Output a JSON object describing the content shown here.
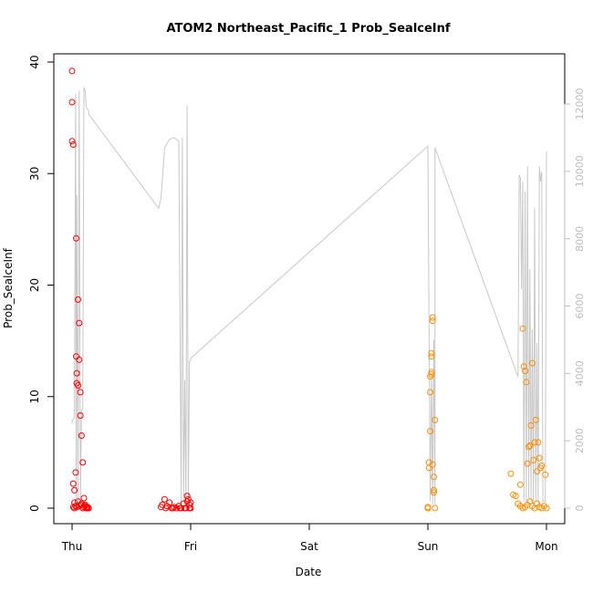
{
  "chart_data": {
    "type": "scatter",
    "title": "ATOM2 Northeast_Pacific_1 Prob_SealceInf",
    "xlabel": "Date",
    "ylabel": "Prob_SealceInf",
    "x_ticks": [
      "Thu",
      "Fri",
      "Sat",
      "Sun",
      "Mon"
    ],
    "x_range_days": [
      0,
      4
    ],
    "ylim": [
      0,
      40
    ],
    "y_ticks": [
      0,
      10,
      20,
      30,
      40
    ],
    "y2lim": [
      0,
      12800
    ],
    "y2_ticks": [
      0,
      2000,
      4000,
      6000,
      8000,
      10000,
      12000
    ],
    "grid": false,
    "legend": "none",
    "colors": {
      "red_points": "#ff0000",
      "orange_points": "#ff8c00",
      "line": "#c8c8c8",
      "axis": "#000000",
      "secondary_axis": "#bdbdbd"
    },
    "series": [
      {
        "color_key": "red_points",
        "x": [
          0.0,
          0.0,
          0.0,
          0.01,
          0.01,
          0.01,
          0.02,
          0.02,
          0.03,
          0.03,
          0.035,
          0.035,
          0.04,
          0.04,
          0.05,
          0.05,
          0.06,
          0.06,
          0.07,
          0.07,
          0.08,
          0.09,
          0.1,
          0.11,
          0.12,
          0.13,
          0.02,
          0.04,
          0.06,
          0.08,
          0.1,
          0.12,
          0.05,
          0.07,
          0.09,
          0.11,
          0.13,
          0.14,
          0.75,
          0.76,
          0.78,
          0.8,
          0.82,
          0.84,
          0.86,
          0.88,
          0.9,
          0.92,
          0.94,
          0.96,
          0.97,
          0.98,
          0.99,
          1.0,
          1.0,
          0.79,
          0.85,
          0.91,
          0.95,
          0.97,
          0.99
        ],
        "y": [
          39.2,
          36.4,
          32.9,
          32.6,
          2.2,
          0.1,
          1.6,
          0.5,
          0.2,
          3.2,
          24.2,
          13.6,
          12.1,
          11.2,
          11.0,
          18.7,
          16.6,
          13.3,
          10.4,
          8.3,
          6.5,
          4.1,
          0.9,
          0.3,
          0.1,
          0.0,
          0.0,
          0.1,
          0.2,
          0.4,
          0.1,
          0.0,
          0.6,
          0.3,
          0.0,
          0.2,
          0.1,
          0.0,
          0.1,
          0.3,
          0.8,
          0.2,
          0.5,
          0.0,
          0.1,
          0.0,
          0.2,
          0.0,
          0.4,
          0.0,
          1.1,
          0.8,
          0.3,
          0.5,
          0.0,
          0.0,
          0.0,
          0.0,
          0.0,
          0.6,
          0.0
        ]
      },
      {
        "color_key": "orange_points",
        "x": [
          3.0,
          3.0,
          3.01,
          3.01,
          3.02,
          3.02,
          3.02,
          3.03,
          3.03,
          3.03,
          3.03,
          3.04,
          3.04,
          3.04,
          3.05,
          3.05,
          3.05,
          3.06,
          3.06,
          3.7,
          3.72,
          3.74,
          3.76,
          3.78,
          3.8,
          3.82,
          3.84,
          3.86,
          3.88,
          3.9,
          3.92,
          3.94,
          3.96,
          3.98,
          4.0,
          3.8,
          3.81,
          3.83,
          3.85,
          3.87,
          3.89,
          3.91,
          3.93,
          3.95,
          3.82,
          3.84,
          3.86,
          3.88,
          3.9,
          3.92,
          3.94,
          3.96,
          3.78,
          3.99
        ],
        "y": [
          0.0,
          0.1,
          4.1,
          3.6,
          6.9,
          10.4,
          11.8,
          12.0,
          12.2,
          13.6,
          13.9,
          16.8,
          17.1,
          3.9,
          2.8,
          1.6,
          1.4,
          7.9,
          0.0,
          3.1,
          1.2,
          1.1,
          0.4,
          0.2,
          0.0,
          0.1,
          0.3,
          0.6,
          0.2,
          0.0,
          0.4,
          0.1,
          0.0,
          0.2,
          0.0,
          16.1,
          12.7,
          11.3,
          5.5,
          7.4,
          4.3,
          7.9,
          5.9,
          3.6,
          12.3,
          4.0,
          5.6,
          13.0,
          5.9,
          3.3,
          4.5,
          3.8,
          2.1,
          3.0
        ]
      },
      {
        "color_key": "line",
        "axis": "secondary",
        "x": [
          0.0,
          0.0,
          0.02,
          0.03,
          0.035,
          0.04,
          0.05,
          0.06,
          0.07,
          0.08,
          0.09,
          0.1,
          0.11,
          0.12,
          0.13,
          0.14,
          0.14,
          0.73,
          0.75,
          0.78,
          0.82,
          0.86,
          0.9,
          0.92,
          0.93,
          0.94,
          0.95,
          0.96,
          0.97,
          0.98,
          0.99,
          1.0,
          1.0,
          3.0,
          3.01,
          3.02,
          3.03,
          3.04,
          3.05,
          3.06,
          3.06,
          3.76,
          3.77,
          3.78,
          3.79,
          3.8,
          3.81,
          3.82,
          3.83,
          3.84,
          3.85,
          3.86,
          3.87,
          3.88,
          3.89,
          3.9,
          3.91,
          3.92,
          3.93,
          3.94,
          3.95,
          3.96,
          3.97,
          3.98,
          3.99,
          4.0
        ],
        "y": [
          2500,
          2600,
          2700,
          12300,
          300,
          9300,
          200,
          12400,
          100,
          2900,
          2950,
          12500,
          12400,
          11900,
          11850,
          11800,
          11700,
          8900,
          9200,
          10700,
          10950,
          11000,
          10900,
          100,
          11000,
          200,
          3800,
          100,
          11950,
          200,
          4350,
          4400,
          4450,
          10750,
          5300,
          200,
          4000,
          100,
          5000,
          100,
          10700,
          3900,
          9900,
          9800,
          6500,
          9700,
          200,
          9400,
          200,
          10150,
          300,
          7100,
          200,
          5300,
          100,
          8900,
          200,
          4900,
          100,
          10150,
          9700,
          10000,
          200,
          200,
          200,
          10600
        ]
      }
    ]
  }
}
